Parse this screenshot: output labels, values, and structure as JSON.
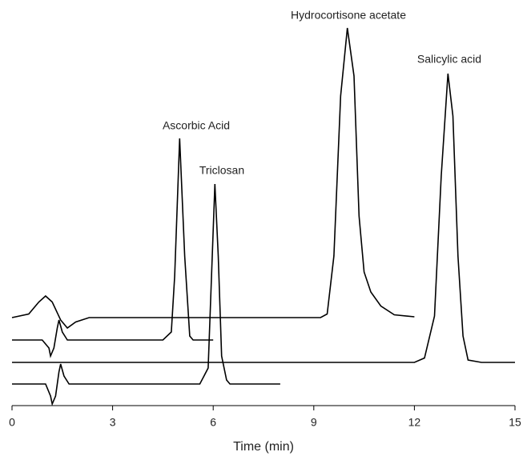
{
  "chart_data": {
    "type": "line",
    "xlabel": "Time (min)",
    "annotations": [
      "Ascorbic Acid",
      "Triclosan",
      "Hydrocortisone acetate",
      "Salicylic acid"
    ],
    "xlim": [
      0,
      15
    ],
    "xticks": [
      0,
      3,
      6,
      9,
      12,
      15
    ],
    "ylim": [
      0,
      100
    ],
    "series": [
      {
        "color": "#000000",
        "x": [
          0,
          0.5,
          0.8,
          1.0,
          1.2,
          1.45,
          1.65,
          1.9,
          2.3,
          9.2,
          9.4,
          9.6,
          9.8,
          10.0,
          10.2,
          10.35,
          10.5,
          10.7,
          11.0,
          11.4,
          12
        ],
        "values": [
          24.6,
          25.5,
          28.5,
          30,
          28.5,
          24,
          22,
          23.5,
          24.6,
          24.6,
          25.5,
          40,
          80,
          97,
          85,
          50,
          36,
          31,
          27.5,
          25.3,
          24.8
        ]
      },
      {
        "color": "#000000",
        "x": [
          0,
          0.9,
          1.1,
          1.15,
          1.25,
          1.35,
          1.4,
          1.5,
          1.65,
          4.5,
          4.75,
          4.85,
          5.0,
          5.15,
          5.3,
          5.4,
          6.0
        ],
        "values": [
          19,
          19,
          17,
          15,
          17,
          22,
          24,
          21,
          19,
          19,
          21,
          35,
          69.4,
          40,
          20,
          19,
          19
        ]
      },
      {
        "color": "#000000",
        "x": [
          0,
          12.0,
          12.3,
          12.6,
          12.8,
          13.0,
          13.15,
          13.3,
          13.45,
          13.6,
          14,
          15
        ],
        "values": [
          13.4,
          13.4,
          14.5,
          25,
          60,
          85.6,
          75,
          40,
          20,
          14,
          13.4,
          13.4
        ]
      },
      {
        "color": "#000000",
        "x": [
          0,
          1.0,
          1.15,
          1.2,
          1.3,
          1.4,
          1.45,
          1.55,
          1.7,
          5.6,
          5.85,
          5.95,
          6.05,
          6.15,
          6.25,
          6.4,
          6.5,
          8
        ],
        "values": [
          8,
          8,
          5,
          3,
          5,
          11,
          13,
          10,
          8,
          8,
          12,
          35,
          58,
          40,
          15,
          9,
          8,
          8
        ]
      }
    ]
  }
}
